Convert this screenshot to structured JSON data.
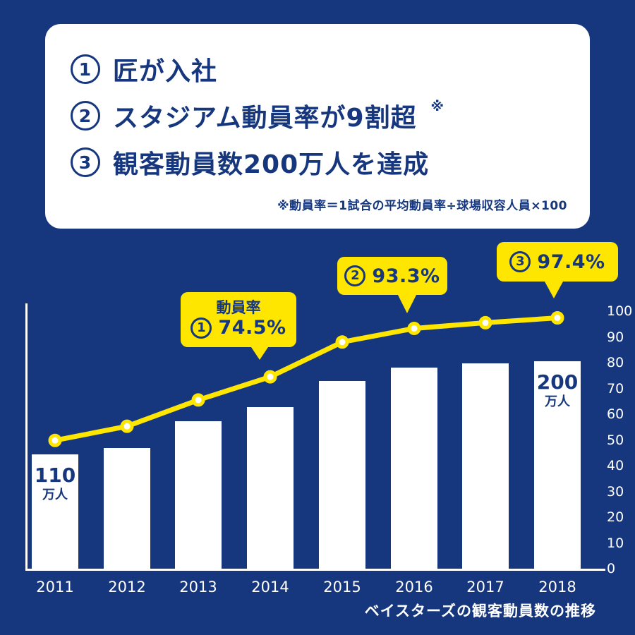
{
  "colors": {
    "background": "#16377E",
    "card_bg": "#FFFFFF",
    "text_navy": "#16377E",
    "accent_yellow": "#FFE600",
    "white": "#FFFFFF"
  },
  "info_card": {
    "items": [
      {
        "num": "1",
        "text": "匠が入社"
      },
      {
        "num": "2",
        "text": "スタジアム動員率が9割超",
        "sup": "※"
      },
      {
        "num": "3",
        "text": "観客動員数200万人を達成"
      }
    ],
    "footnote": "※動員率＝1試合の平均動員率÷球場収容人員×100"
  },
  "chart_data": {
    "type": "bar",
    "categories": [
      "2011",
      "2012",
      "2013",
      "2014",
      "2015",
      "2016",
      "2017",
      "2018"
    ],
    "series": [
      {
        "name": "観客動員数（万人）",
        "type": "bar",
        "values": [
          110,
          116,
          142,
          156,
          181,
          194,
          198,
          200
        ]
      },
      {
        "name": "動員率（%）",
        "type": "line",
        "values": [
          49.8,
          55.3,
          65.5,
          74.5,
          88.0,
          93.3,
          95.5,
          97.4
        ]
      }
    ],
    "right_axis": {
      "min": 0,
      "max": 100,
      "step": 10,
      "ticks": [
        100,
        90,
        80,
        70,
        60,
        50,
        40,
        30,
        20,
        10,
        0
      ]
    },
    "bar_labels": [
      {
        "category": "2011",
        "value": "110",
        "unit": "万人"
      },
      {
        "category": "2018",
        "value": "200",
        "unit": "万人"
      }
    ],
    "callouts": [
      {
        "title": "動員率",
        "num": "1",
        "value": "74.5%",
        "target": "2014"
      },
      {
        "num": "2",
        "value": "93.3%",
        "target": "2016"
      },
      {
        "num": "3",
        "value": "97.4%",
        "target": "2018"
      }
    ],
    "caption": "ベイスターズの観客動員数の推移",
    "grid": false,
    "legend_position": "none"
  }
}
